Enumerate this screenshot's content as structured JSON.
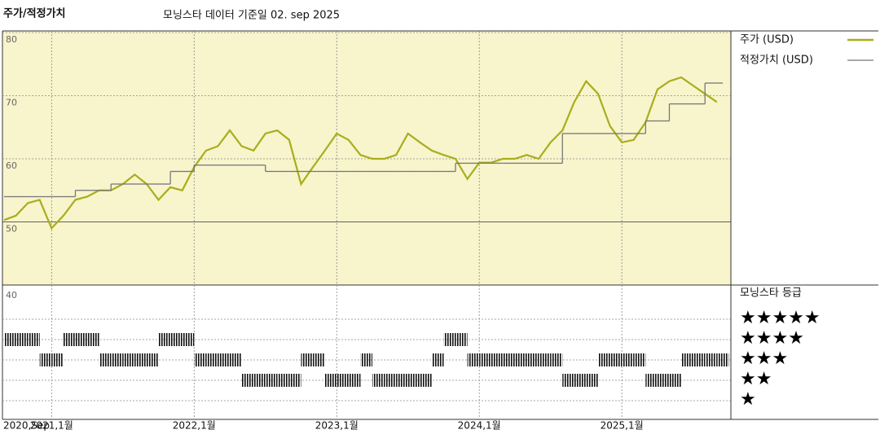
{
  "chart_data": [
    {
      "type": "line",
      "title": "주가/적정가치",
      "subtitle": "모닝스타 데이터 기준일 02. sep 2025",
      "x": [
        "2020-09",
        "2020-10",
        "2020-11",
        "2020-12",
        "2021-01",
        "2021-02",
        "2021-03",
        "2021-04",
        "2021-05",
        "2021-06",
        "2021-07",
        "2021-08",
        "2021-09",
        "2021-10",
        "2021-11",
        "2021-12",
        "2022-01",
        "2022-02",
        "2022-03",
        "2022-04",
        "2022-05",
        "2022-06",
        "2022-07",
        "2022-08",
        "2022-09",
        "2022-10",
        "2022-11",
        "2022-12",
        "2023-01",
        "2023-02",
        "2023-03",
        "2023-04",
        "2023-05",
        "2023-06",
        "2023-07",
        "2023-08",
        "2023-09",
        "2023-10",
        "2023-11",
        "2023-12",
        "2024-01",
        "2024-02",
        "2024-03",
        "2024-04",
        "2024-05",
        "2024-06",
        "2024-07",
        "2024-08",
        "2024-09",
        "2024-10",
        "2024-11",
        "2024-12",
        "2025-01",
        "2025-02",
        "2025-03",
        "2025-04",
        "2025-05",
        "2025-06",
        "2025-07",
        "2025-08",
        "2025-09"
      ],
      "series": [
        {
          "name": "주가 (USD)",
          "color": "#a9ad1c",
          "values": [
            50.3,
            51,
            53,
            53.5,
            49,
            51,
            53.5,
            54,
            55,
            55,
            56,
            57.5,
            56,
            53.5,
            55.5,
            55,
            58.7,
            61.3,
            62,
            64.5,
            62,
            61.3,
            64,
            64.5,
            63,
            56,
            58.7,
            61.3,
            64,
            63,
            60.6,
            60,
            60,
            60.6,
            64,
            62.6,
            61.3,
            60.6,
            60,
            56.8,
            59.4,
            59.4,
            60,
            60,
            60.6,
            60,
            62.6,
            64.5,
            69,
            72.3,
            70.3,
            65.2,
            62.6,
            63,
            65.8,
            71,
            72.3,
            72.9,
            71.6,
            70.3,
            69
          ]
        },
        {
          "name": "적정가치 (USD)",
          "color": "#777777",
          "step": true,
          "values": [
            54,
            54,
            54,
            54,
            54,
            54,
            55,
            55,
            55,
            56,
            56,
            56,
            56,
            56,
            58,
            58,
            59,
            59,
            59,
            59,
            59,
            59,
            58,
            58,
            58,
            58,
            58,
            58,
            58,
            58,
            58,
            58,
            58,
            58,
            58,
            58,
            58,
            58,
            59.3,
            59.3,
            59.3,
            59.3,
            59.3,
            59.3,
            59.3,
            59.3,
            59.3,
            64,
            64,
            64,
            64,
            64,
            64,
            64,
            66,
            66,
            68.7,
            68.7,
            68.7,
            72,
            72
          ]
        }
      ],
      "ylim": [
        40,
        80
      ],
      "yticks": [
        50,
        60,
        70,
        80
      ],
      "xticks": [
        {
          "value": "2020-09",
          "label": "2020,Sep"
        },
        {
          "value": "2021-01",
          "label": "2021,1월"
        },
        {
          "value": "2022-01",
          "label": "2022,1월"
        },
        {
          "value": "2023-01",
          "label": "2023,1월"
        },
        {
          "value": "2024-01",
          "label": "2024,1월"
        },
        {
          "value": "2025-01",
          "label": "2025,1월"
        }
      ],
      "grid": true,
      "background": "#f8f4cc"
    },
    {
      "type": "rating",
      "title": "모닝스타 등급",
      "axis_label": "40",
      "color": "#000000",
      "legend": [
        "★★★★★",
        "★★★★",
        "★★★",
        "★★",
        "★"
      ],
      "x": [
        "2020-09",
        "2020-10",
        "2020-11",
        "2020-12",
        "2021-01",
        "2021-02",
        "2021-03",
        "2021-04",
        "2021-05",
        "2021-06",
        "2021-07",
        "2021-08",
        "2021-09",
        "2021-10",
        "2021-11",
        "2021-12",
        "2022-01",
        "2022-02",
        "2022-03",
        "2022-04",
        "2022-05",
        "2022-06",
        "2022-07",
        "2022-08",
        "2022-09",
        "2022-10",
        "2022-11",
        "2022-12",
        "2023-01",
        "2023-02",
        "2023-03",
        "2023-04",
        "2023-05",
        "2023-06",
        "2023-07",
        "2023-08",
        "2023-09",
        "2023-10",
        "2023-11",
        "2023-12",
        "2024-01",
        "2024-02",
        "2024-03",
        "2024-04",
        "2024-05",
        "2024-06",
        "2024-07",
        "2024-08",
        "2024-09",
        "2024-10",
        "2024-11",
        "2024-12",
        "2025-01",
        "2025-02",
        "2025-03",
        "2025-04",
        "2025-05",
        "2025-06",
        "2025-07",
        "2025-08",
        "2025-09"
      ],
      "values": [
        4,
        4,
        4,
        3,
        3,
        4,
        4,
        4,
        3,
        3,
        3,
        3,
        3,
        4,
        4,
        4,
        3,
        3,
        3,
        3,
        2,
        2,
        2,
        2,
        2,
        3,
        3,
        2,
        2,
        2,
        3,
        2,
        2,
        2,
        2,
        2,
        3,
        4,
        4,
        3,
        3,
        3,
        3,
        3,
        3,
        3,
        3,
        2,
        2,
        2,
        3,
        3,
        3,
        3,
        2,
        2,
        2,
        3,
        3,
        3,
        3
      ]
    }
  ]
}
